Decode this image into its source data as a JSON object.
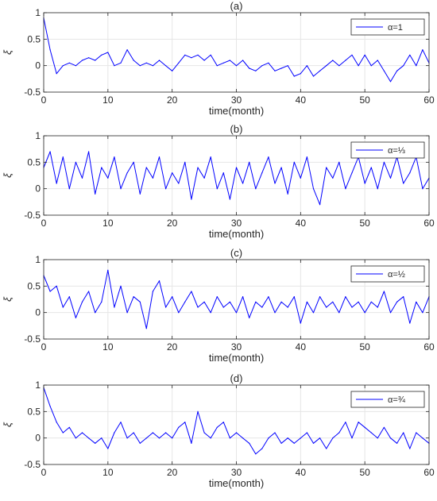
{
  "figure": {
    "title": ""
  },
  "chart_data": [
    {
      "type": "line",
      "panel_label": "(a)",
      "xlabel": "time(month)",
      "ylabel": "ξ",
      "xlim": [
        0,
        60
      ],
      "ylim": [
        -0.5,
        1
      ],
      "xticks": [
        0,
        10,
        20,
        30,
        40,
        50,
        60
      ],
      "yticks": [
        -0.5,
        0,
        0.5,
        1
      ],
      "xtick_labels": [
        "0",
        "10",
        "20",
        "30",
        "40",
        "50",
        "60"
      ],
      "ytick_labels": [
        "-0.5",
        "0",
        "0.5",
        "1"
      ],
      "grid": true,
      "legend_position": "top-right",
      "series": [
        {
          "name": "α=1",
          "color": "#0000ff",
          "x": [
            0,
            1,
            2,
            3,
            4,
            5,
            6,
            7,
            8,
            9,
            10,
            11,
            12,
            13,
            14,
            15,
            16,
            17,
            18,
            19,
            20,
            21,
            22,
            23,
            24,
            25,
            26,
            27,
            28,
            29,
            30,
            31,
            32,
            33,
            34,
            35,
            36,
            37,
            38,
            39,
            40,
            41,
            42,
            43,
            44,
            45,
            46,
            47,
            48,
            49,
            50,
            51,
            52,
            53,
            54,
            55,
            56,
            57,
            58,
            59,
            60
          ],
          "y": [
            0.9,
            0.3,
            -0.15,
            0.0,
            0.05,
            0.0,
            0.1,
            0.15,
            0.1,
            0.2,
            0.25,
            0.0,
            0.05,
            0.3,
            0.1,
            0.0,
            0.05,
            0.0,
            0.1,
            0.0,
            -0.1,
            0.05,
            0.2,
            0.15,
            0.2,
            0.1,
            0.2,
            0.0,
            0.05,
            0.1,
            0.0,
            0.1,
            -0.05,
            -0.1,
            0.0,
            0.05,
            -0.1,
            -0.05,
            0.0,
            -0.2,
            -0.15,
            0.0,
            -0.2,
            -0.1,
            0.0,
            0.1,
            0.0,
            0.1,
            0.2,
            0.0,
            0.2,
            0.0,
            0.1,
            -0.1,
            -0.3,
            -0.1,
            0.0,
            0.2,
            0.0,
            0.3,
            0.05
          ]
        }
      ]
    },
    {
      "type": "line",
      "panel_label": "(b)",
      "xlabel": "time(month)",
      "ylabel": "ξ",
      "xlim": [
        0,
        60
      ],
      "ylim": [
        -0.5,
        1
      ],
      "xticks": [
        0,
        10,
        20,
        30,
        40,
        50,
        60
      ],
      "yticks": [
        -0.5,
        0,
        0.5,
        1
      ],
      "xtick_labels": [
        "0",
        "10",
        "20",
        "30",
        "40",
        "50",
        "60"
      ],
      "ytick_labels": [
        "-0.5",
        "0",
        "0.5",
        "1"
      ],
      "grid": true,
      "legend_position": "top-right",
      "series": [
        {
          "name": "α=⅓",
          "color": "#0000ff",
          "x": [
            0,
            1,
            2,
            3,
            4,
            5,
            6,
            7,
            8,
            9,
            10,
            11,
            12,
            13,
            14,
            15,
            16,
            17,
            18,
            19,
            20,
            21,
            22,
            23,
            24,
            25,
            26,
            27,
            28,
            29,
            30,
            31,
            32,
            33,
            34,
            35,
            36,
            37,
            38,
            39,
            40,
            41,
            42,
            43,
            44,
            45,
            46,
            47,
            48,
            49,
            50,
            51,
            52,
            53,
            54,
            55,
            56,
            57,
            58,
            59,
            60
          ],
          "y": [
            0.4,
            0.7,
            0.1,
            0.6,
            0.0,
            0.5,
            0.2,
            0.7,
            -0.1,
            0.4,
            0.2,
            0.6,
            0.0,
            0.3,
            0.5,
            -0.1,
            0.4,
            0.2,
            0.6,
            0.0,
            0.3,
            0.1,
            0.5,
            -0.2,
            0.4,
            0.2,
            0.6,
            0.0,
            0.3,
            -0.2,
            0.4,
            0.1,
            0.5,
            0.0,
            0.3,
            0.6,
            0.1,
            0.4,
            -0.1,
            0.5,
            0.2,
            0.6,
            0.0,
            -0.3,
            0.4,
            0.2,
            0.5,
            0.0,
            0.3,
            0.6,
            0.1,
            0.4,
            0.0,
            0.5,
            0.2,
            0.6,
            0.1,
            0.3,
            0.6,
            0.0,
            0.2
          ]
        }
      ]
    },
    {
      "type": "line",
      "panel_label": "(c)",
      "xlabel": "time(month)",
      "ylabel": "ξ",
      "xlim": [
        0,
        60
      ],
      "ylim": [
        -0.5,
        1
      ],
      "xticks": [
        0,
        10,
        20,
        30,
        40,
        50,
        60
      ],
      "yticks": [
        -0.5,
        0,
        0.5,
        1
      ],
      "xtick_labels": [
        "0",
        "10",
        "20",
        "30",
        "40",
        "50",
        "60"
      ],
      "ytick_labels": [
        "-0.5",
        "0",
        "0.5",
        "1"
      ],
      "grid": true,
      "legend_position": "top-right",
      "series": [
        {
          "name": "α=½",
          "color": "#0000ff",
          "x": [
            0,
            1,
            2,
            3,
            4,
            5,
            6,
            7,
            8,
            9,
            10,
            11,
            12,
            13,
            14,
            15,
            16,
            17,
            18,
            19,
            20,
            21,
            22,
            23,
            24,
            25,
            26,
            27,
            28,
            29,
            30,
            31,
            32,
            33,
            34,
            35,
            36,
            37,
            38,
            39,
            40,
            41,
            42,
            43,
            44,
            45,
            46,
            47,
            48,
            49,
            50,
            51,
            52,
            53,
            54,
            55,
            56,
            57,
            58,
            59,
            60
          ],
          "y": [
            0.7,
            0.4,
            0.5,
            0.1,
            0.3,
            -0.1,
            0.2,
            0.4,
            0.0,
            0.2,
            0.8,
            0.1,
            0.5,
            0.0,
            0.3,
            0.2,
            -0.3,
            0.4,
            0.6,
            0.1,
            0.3,
            0.0,
            0.2,
            0.4,
            0.1,
            0.2,
            0.0,
            0.3,
            0.1,
            0.2,
            0.0,
            0.3,
            -0.1,
            0.2,
            0.1,
            0.3,
            0.0,
            0.2,
            0.1,
            0.3,
            -0.2,
            0.2,
            0.0,
            0.3,
            0.1,
            0.2,
            0.0,
            0.3,
            0.1,
            0.2,
            0.0,
            0.2,
            0.1,
            0.4,
            0.0,
            0.2,
            0.3,
            -0.2,
            0.2,
            0.0,
            0.3
          ]
        }
      ]
    },
    {
      "type": "line",
      "panel_label": "(d)",
      "xlabel": "time(month)",
      "ylabel": "ξ",
      "xlim": [
        0,
        60
      ],
      "ylim": [
        -0.5,
        1
      ],
      "xticks": [
        0,
        10,
        20,
        30,
        40,
        50,
        60
      ],
      "yticks": [
        -0.5,
        0,
        0.5,
        1
      ],
      "xtick_labels": [
        "0",
        "10",
        "20",
        "30",
        "40",
        "50",
        "60"
      ],
      "ytick_labels": [
        "-0.5",
        "0",
        "0.5",
        "1"
      ],
      "grid": true,
      "legend_position": "top-right",
      "series": [
        {
          "name": "α=¾",
          "color": "#0000ff",
          "x": [
            0,
            1,
            2,
            3,
            4,
            5,
            6,
            7,
            8,
            9,
            10,
            11,
            12,
            13,
            14,
            15,
            16,
            17,
            18,
            19,
            20,
            21,
            22,
            23,
            24,
            25,
            26,
            27,
            28,
            29,
            30,
            31,
            32,
            33,
            34,
            35,
            36,
            37,
            38,
            39,
            40,
            41,
            42,
            43,
            44,
            45,
            46,
            47,
            48,
            49,
            50,
            51,
            52,
            53,
            54,
            55,
            56,
            57,
            58,
            59,
            60
          ],
          "y": [
            0.95,
            0.6,
            0.3,
            0.1,
            0.2,
            0.0,
            0.1,
            0.0,
            -0.1,
            0.0,
            -0.2,
            0.1,
            0.3,
            0.0,
            0.1,
            -0.1,
            0.0,
            0.1,
            0.0,
            0.1,
            0.0,
            0.2,
            0.3,
            -0.1,
            0.5,
            0.1,
            0.0,
            0.2,
            0.3,
            0.0,
            0.1,
            0.0,
            -0.1,
            -0.3,
            -0.2,
            0.0,
            0.1,
            -0.1,
            0.0,
            -0.1,
            0.0,
            0.1,
            -0.1,
            0.0,
            -0.2,
            0.0,
            0.1,
            0.3,
            0.0,
            0.3,
            0.2,
            0.1,
            0.0,
            0.2,
            0.0,
            -0.1,
            0.1,
            -0.2,
            0.1,
            0.0,
            -0.1
          ]
        }
      ]
    }
  ]
}
